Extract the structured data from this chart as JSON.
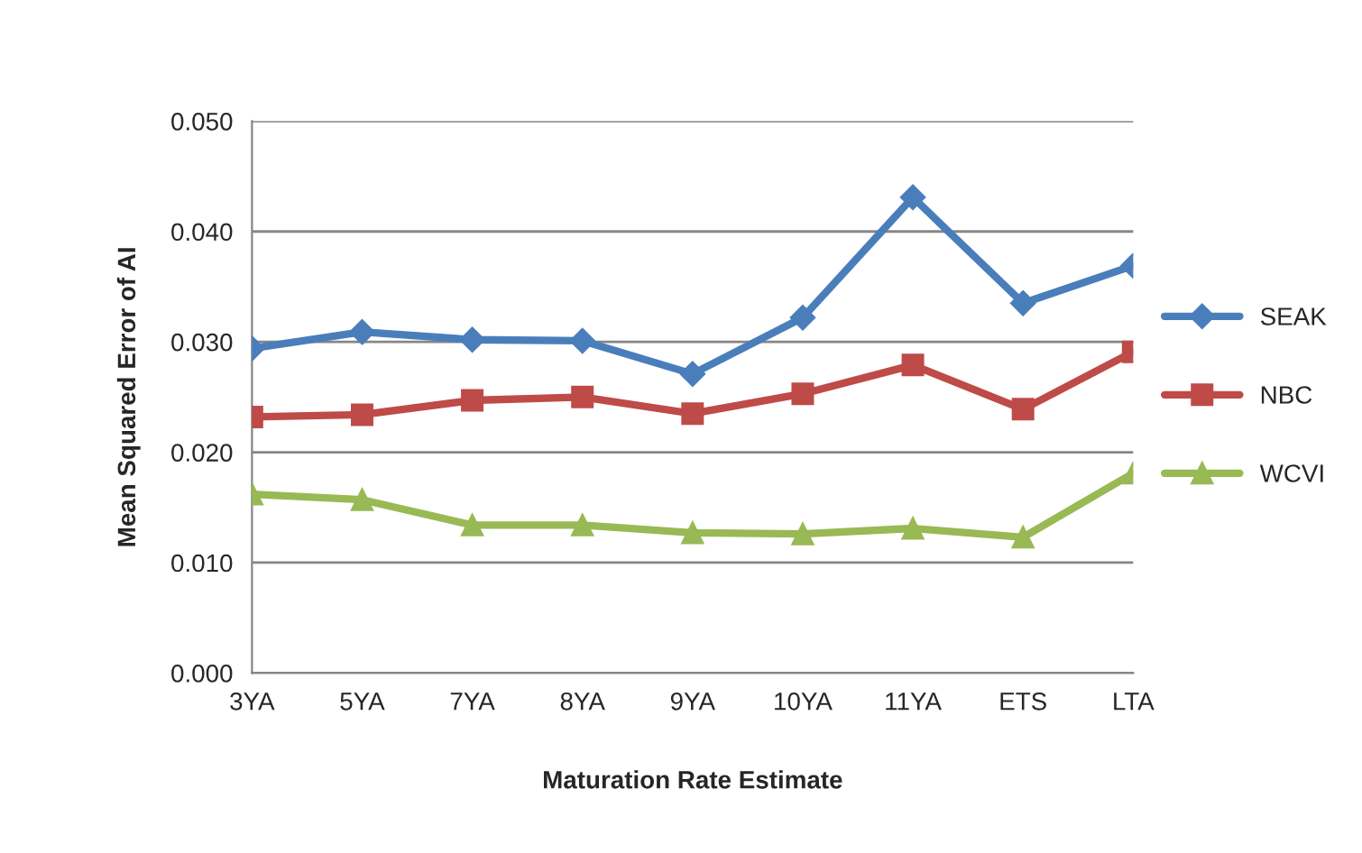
{
  "chart_data": {
    "type": "line",
    "xlabel": "Maturation Rate Estimate",
    "ylabel": "Mean Squared Error of AI",
    "categories": [
      "3YA",
      "5YA",
      "7YA",
      "8YA",
      "9YA",
      "10YA",
      "11YA",
      "ETS",
      "LTA"
    ],
    "series": [
      {
        "name": "SEAK",
        "color": "#4a7ebb",
        "marker": "diamond",
        "values": [
          0.0294,
          0.0309,
          0.0302,
          0.0301,
          0.0271,
          0.0322,
          0.0431,
          0.0335,
          0.0369
        ]
      },
      {
        "name": "NBC",
        "color": "#be4b48",
        "marker": "square",
        "values": [
          0.0232,
          0.0234,
          0.0247,
          0.025,
          0.0235,
          0.0253,
          0.0279,
          0.0239,
          0.0291
        ]
      },
      {
        "name": "WCVI",
        "color": "#98b954",
        "marker": "triangle",
        "values": [
          0.0162,
          0.0157,
          0.0134,
          0.0134,
          0.0127,
          0.0126,
          0.0131,
          0.0123,
          0.0181
        ]
      }
    ],
    "ylim": [
      0,
      0.05
    ],
    "yticks": [
      {
        "value": 0,
        "label": "0.000"
      },
      {
        "value": 0.01,
        "label": "0.010"
      },
      {
        "value": 0.02,
        "label": "0.020"
      },
      {
        "value": 0.03,
        "label": "0.030"
      },
      {
        "value": 0.04,
        "label": "0.040"
      },
      {
        "value": 0.05,
        "label": "0.050"
      }
    ],
    "grid": "y",
    "legend": "right",
    "line_style": "solid"
  }
}
